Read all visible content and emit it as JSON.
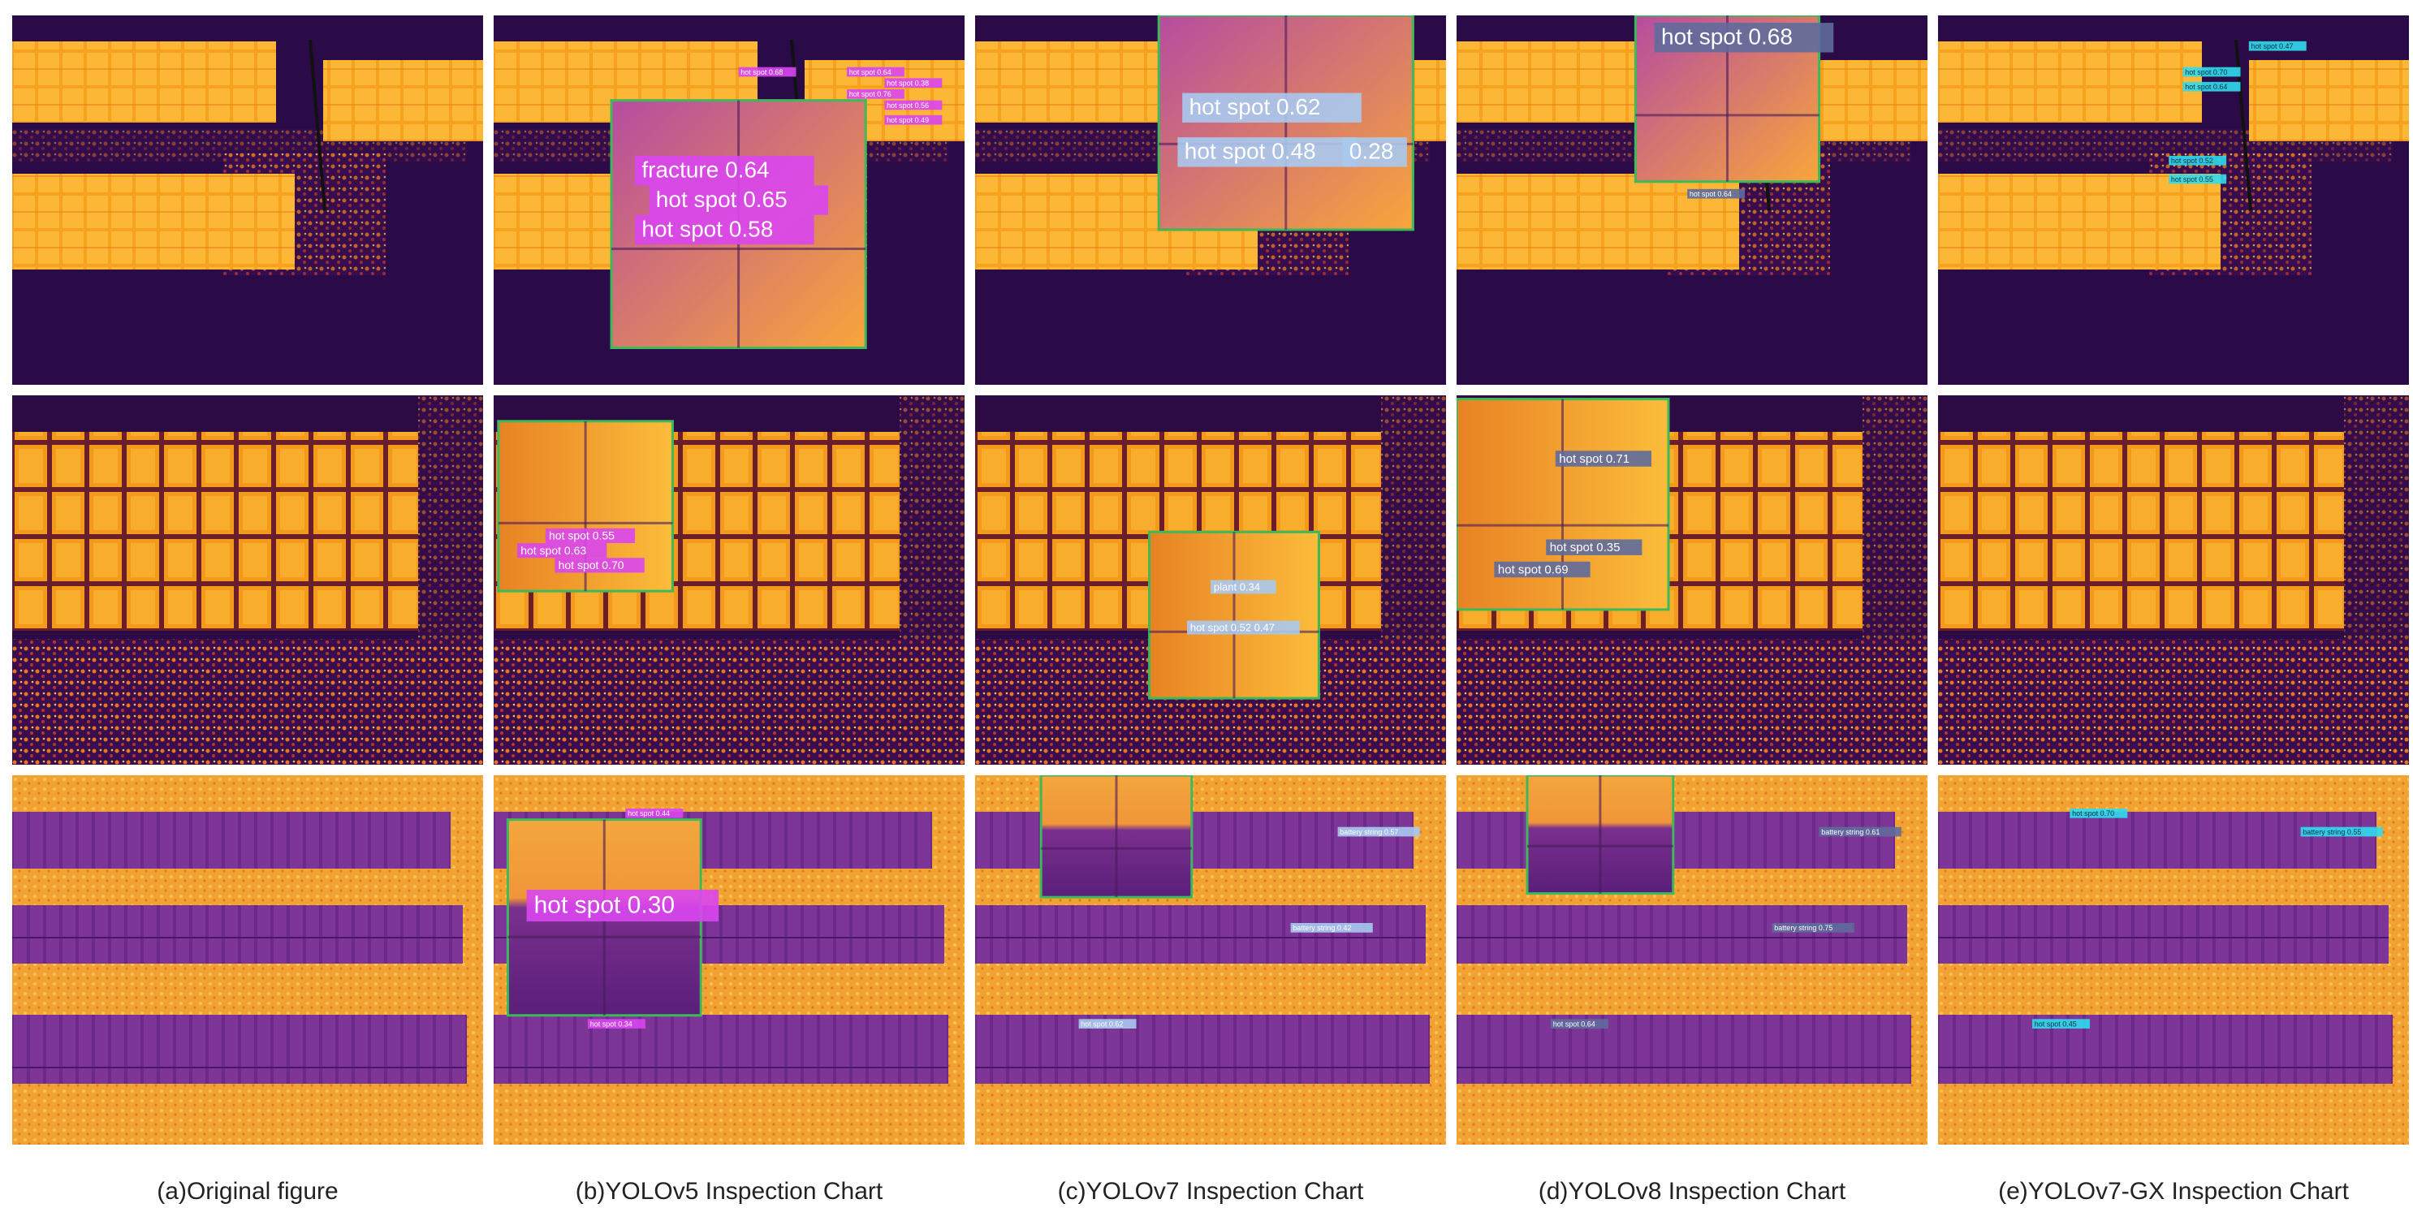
{
  "columns": [
    {
      "caption": "(a)Original figure",
      "rows": [
        [],
        [],
        []
      ]
    },
    {
      "caption": "(b)YOLOv5 Inspection Chart",
      "rows": [
        [
          "fracture 0.64",
          "hot spot 0.65",
          "hot spot 0.58",
          "hot spot 0.68",
          "hot spot 0.64",
          "hot spot 0.38",
          "hot spot 0.76",
          "hot spot 0.56",
          "hot spot 0.49"
        ],
        [
          "hot spot 0.55",
          "hot spot 0.63",
          "hot spot 0.70"
        ],
        [
          "hot spot 0.30",
          "hot spot 0.44",
          "hot spot 0.34"
        ]
      ]
    },
    {
      "caption": "(c)YOLOv7 Inspection Chart",
      "rows": [
        [
          "hot spot 0.62",
          "hot spot 0.48",
          "0.28"
        ],
        [
          "plant 0.34",
          "hot spot 0.52 0.47"
        ],
        [
          "battery string 0.57",
          "battery string 0.42",
          "hot spot 0.62"
        ]
      ]
    },
    {
      "caption": "(d)YOLOv8 Inspection Chart",
      "rows": [
        [
          "hot spot 0.68",
          "hot spot 0.64"
        ],
        [
          "hot spot 0.71",
          "hot spot 0.35",
          "hot spot 0.69"
        ],
        [
          "battery string 0.61",
          "battery string 0.75",
          "hot spot 0.64"
        ]
      ]
    },
    {
      "caption": "(e)YOLOv7-GX Inspection Chart",
      "rows": [
        [
          "hot spot 0.47",
          "hot spot 0.70",
          "hot spot 0.64",
          "hot spot 0.52",
          "hot spot 0.55"
        ],
        [],
        [
          "hot spot 0.70",
          "battery string 0.55",
          "hot spot 0.45"
        ]
      ]
    }
  ]
}
